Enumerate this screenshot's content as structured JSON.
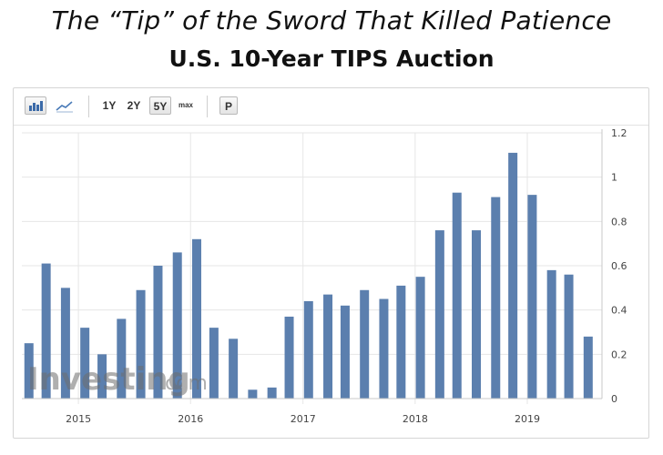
{
  "header": {
    "title": "The “Tip” of the Sword That Killed Patience",
    "subtitle": "U.S. 10-Year TIPS Auction"
  },
  "toolbar": {
    "bar_icon": "bar-chart-icon",
    "line_icon": "line-chart-icon",
    "ranges": [
      "1Y",
      "2Y",
      "5Y",
      "max"
    ],
    "selected_range": "5Y",
    "p_label": "P"
  },
  "watermark": {
    "brand": "Investing",
    "suffix": ".com"
  },
  "colors": {
    "bar": "#5b7fae",
    "grid": "#e6e6e6",
    "watermark": "#6e6e6e"
  },
  "chart_data": {
    "type": "bar",
    "title": "U.S. 10-Year TIPS Auction",
    "xlabel": "",
    "ylabel": "",
    "ylim": [
      0,
      1.2
    ],
    "yticks": [
      0,
      0.2,
      0.4,
      0.6,
      0.8,
      1.0,
      1.2
    ],
    "ytick_labels": [
      "0",
      "0.2",
      "0.4",
      "0.6",
      "0.8",
      "1",
      "1.2"
    ],
    "xtick_labels": [
      "2015",
      "2016",
      "2017",
      "2018",
      "2019"
    ],
    "y_axis_side": "right",
    "grid": true,
    "x_start": "2014-07",
    "x_end": "2019-09",
    "dates": [
      "2014-07-24",
      "2014-09-18",
      "2014-11-20",
      "2015-01-22",
      "2015-03-19",
      "2015-05-21",
      "2015-07-23",
      "2015-09-17",
      "2015-11-19",
      "2016-01-21",
      "2016-03-17",
      "2016-05-19",
      "2016-07-21",
      "2016-09-22",
      "2016-11-17",
      "2017-01-19",
      "2017-03-23",
      "2017-05-18",
      "2017-07-20",
      "2017-09-21",
      "2017-11-16",
      "2018-01-18",
      "2018-03-22",
      "2018-05-17",
      "2018-07-19",
      "2018-09-20",
      "2018-11-15",
      "2019-01-17",
      "2019-03-21",
      "2019-05-16",
      "2019-07-18"
    ],
    "values": [
      0.25,
      0.61,
      0.5,
      0.32,
      0.2,
      0.36,
      0.49,
      0.6,
      0.66,
      0.72,
      0.32,
      0.27,
      0.04,
      0.05,
      0.37,
      0.44,
      0.47,
      0.42,
      0.49,
      0.45,
      0.51,
      0.55,
      0.76,
      0.93,
      0.76,
      0.91,
      1.11,
      0.92,
      0.58,
      0.56,
      0.28
    ]
  }
}
